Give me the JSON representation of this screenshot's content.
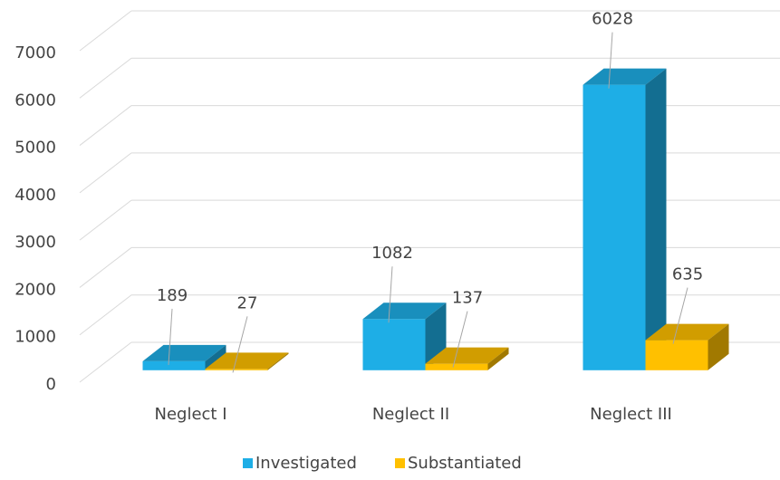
{
  "chart_data": {
    "type": "bar3d",
    "categories": [
      "Neglect I",
      "Neglect II",
      "Neglect III"
    ],
    "series": [
      {
        "name": "Investigated",
        "color": "#1eaee6",
        "values": [
          189,
          1082,
          6028
        ]
      },
      {
        "name": "Substantiated",
        "color": "#ffc000",
        "values": [
          27,
          137,
          635
        ]
      }
    ],
    "ylim": [
      0,
      7000
    ],
    "yticks": [
      0,
      1000,
      2000,
      3000,
      4000,
      5000,
      6000,
      7000
    ],
    "grid": true,
    "legend": "bottom"
  }
}
